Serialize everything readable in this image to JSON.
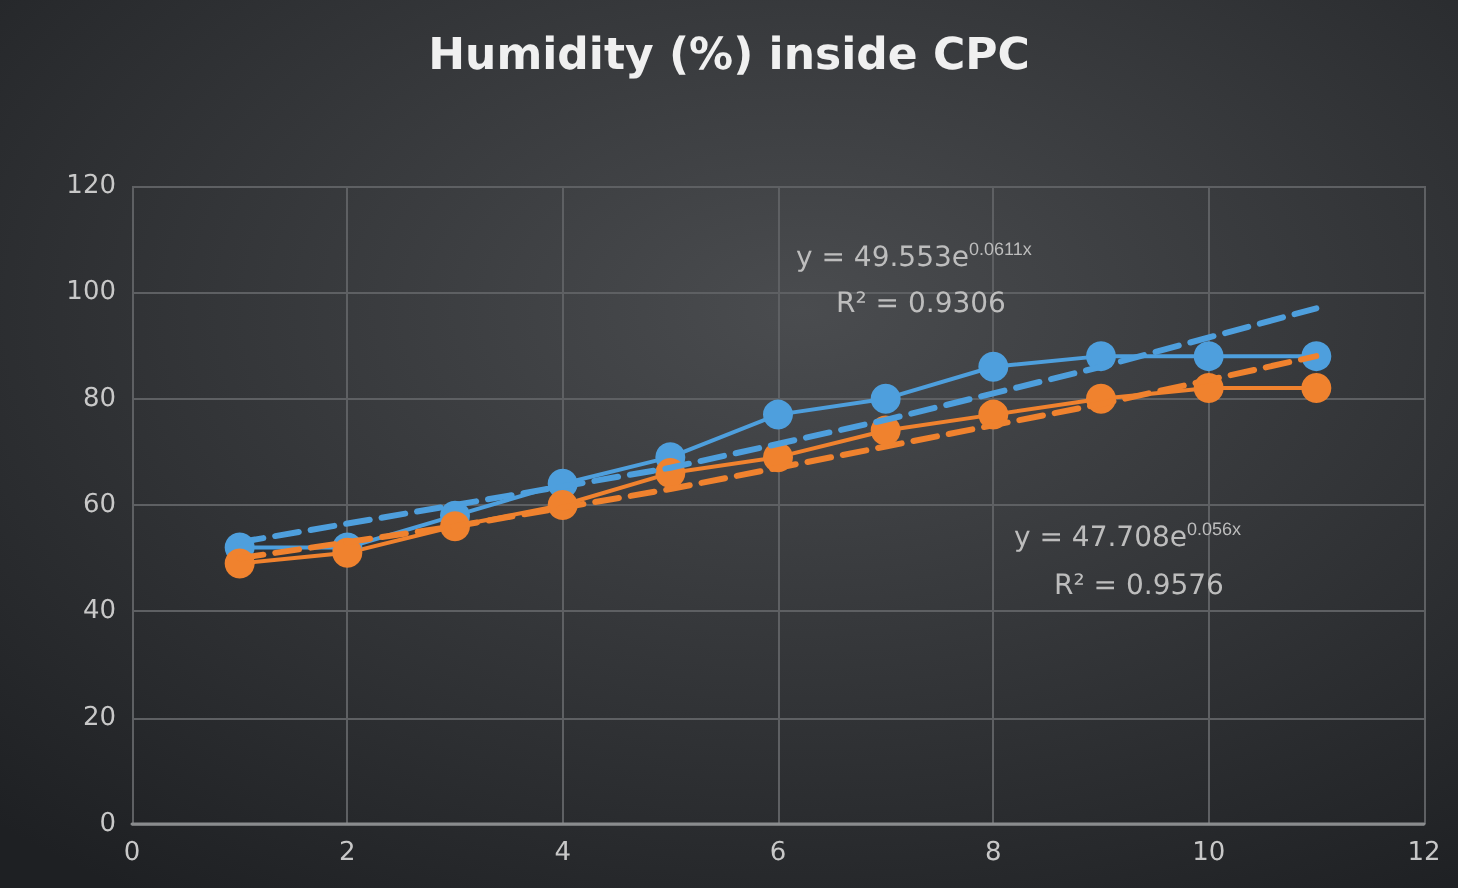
{
  "chart_data": {
    "type": "line",
    "title": "Humidity (%) inside CPC",
    "x": [
      1,
      2,
      3,
      4,
      5,
      6,
      7,
      8,
      9,
      10,
      11
    ],
    "series": [
      {
        "color": "#4e9fdd",
        "values": [
          52,
          52,
          58,
          64,
          69,
          77,
          80,
          86,
          88,
          88,
          88
        ]
      },
      {
        "color": "#f0822e",
        "values": [
          49,
          51,
          56,
          60,
          66,
          69,
          74,
          77,
          80,
          82,
          82
        ]
      },
      {
        "color": "#4e9fdd",
        "type": "line",
        "line_style": "dashed",
        "marker": "none",
        "x": [
          1,
          3,
          5,
          7,
          9,
          11
        ],
        "values": [
          53,
          60,
          67,
          76,
          86,
          97
        ]
      },
      {
        "color": "#f0822e",
        "type": "line",
        "line_style": "dashed",
        "marker": "none",
        "x": [
          1,
          3,
          5,
          7,
          9,
          11
        ],
        "values": [
          50,
          56,
          63,
          71,
          79,
          88
        ]
      }
    ],
    "xlim": [
      0,
      12
    ],
    "xticks": [
      0,
      2,
      4,
      6,
      8,
      10,
      12
    ],
    "ylim": [
      0,
      120
    ],
    "yticks": [
      0,
      20,
      40,
      60,
      80,
      100,
      120
    ],
    "grid": true,
    "marker": "circle",
    "line_style": "solid",
    "annotations": [
      "y = 49.553e$^{0.0611x}$",
      "R² = 0.9306",
      "y = 47.708e$^{0.056x}$",
      "R² = 0.9576"
    ]
  }
}
